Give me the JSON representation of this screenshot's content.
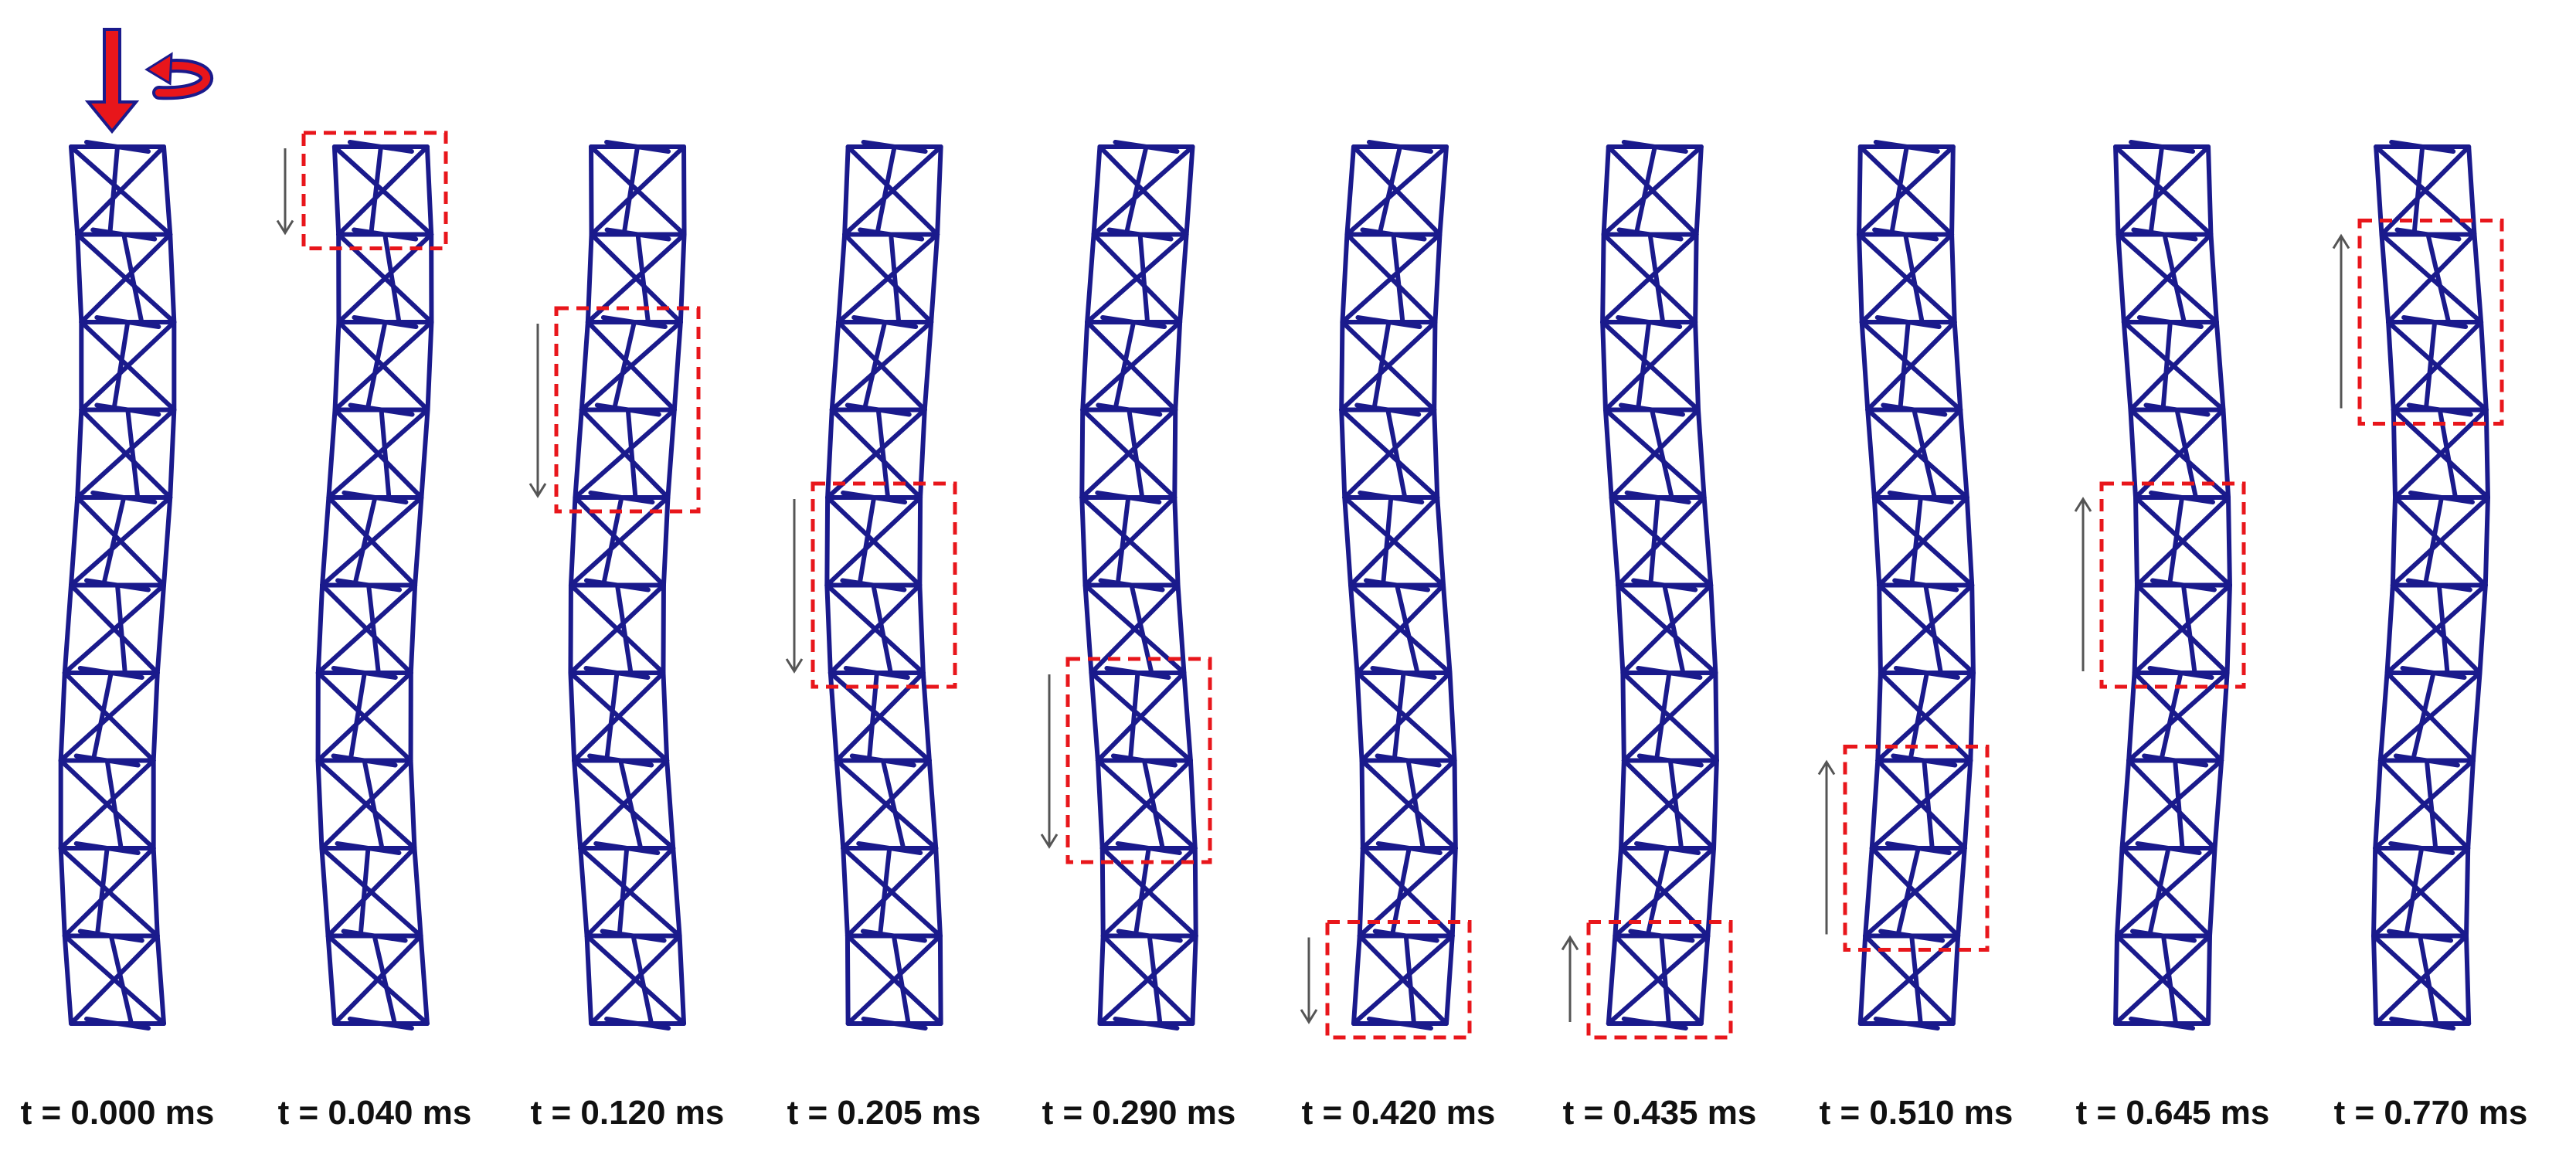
{
  "frames": [
    {
      "time_label": "t = 0.000 ms",
      "highlight_cells": [],
      "arrow": "none"
    },
    {
      "time_label": "t = 0.040 ms",
      "highlight_cells": [
        0
      ],
      "arrow": "down"
    },
    {
      "time_label": "t = 0.120 ms",
      "highlight_cells": [
        2,
        3
      ],
      "arrow": "down"
    },
    {
      "time_label": "t = 0.205 ms",
      "highlight_cells": [
        4,
        5
      ],
      "arrow": "down"
    },
    {
      "time_label": "t = 0.290 ms",
      "highlight_cells": [
        6,
        7
      ],
      "arrow": "down"
    },
    {
      "time_label": "t = 0.420 ms",
      "highlight_cells": [
        9
      ],
      "arrow": "down"
    },
    {
      "time_label": "t = 0.435 ms",
      "highlight_cells": [
        9
      ],
      "arrow": "up"
    },
    {
      "time_label": "t = 0.510 ms",
      "highlight_cells": [
        7,
        8
      ],
      "arrow": "up"
    },
    {
      "time_label": "t = 0.645 ms",
      "highlight_cells": [
        4,
        5
      ],
      "arrow": "up"
    },
    {
      "time_label": "t = 0.770 ms",
      "highlight_cells": [
        1,
        2
      ],
      "arrow": "up"
    }
  ],
  "truss_cells": 10,
  "colors": {
    "truss": "#1a1a8c",
    "highlight": "#e8161b",
    "load_arrow": "#e8161b",
    "load_arrow_outline": "#1a1a8c",
    "wave_arrow": "#555555",
    "label": "#111111"
  },
  "loading_icons": [
    "compression-arrow-icon",
    "torsion-arrow-icon"
  ]
}
